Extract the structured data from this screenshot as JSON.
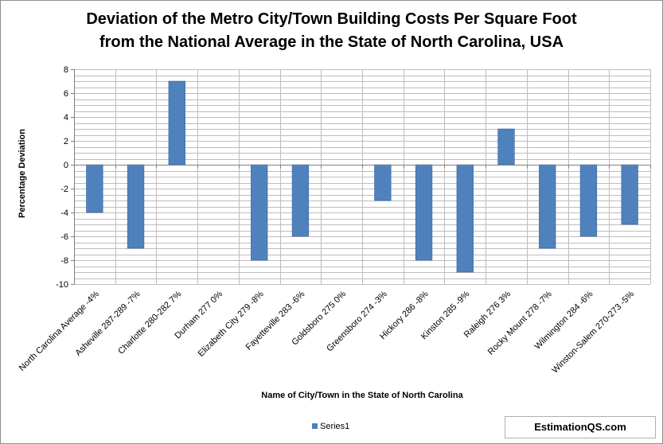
{
  "chart_data": {
    "type": "bar",
    "title": [
      "Deviation of the Metro City/Town Building Costs Per Square Foot",
      "from the National Average in the State of North Carolina, USA"
    ],
    "xlabel": "Name of City/Town in the State of North Carolina",
    "ylabel": "Percentage Deviation",
    "ylim": [
      -10,
      8
    ],
    "yticks": [
      8,
      6,
      4,
      2,
      0,
      -2,
      -4,
      -6,
      -8,
      -10
    ],
    "categories": [
      "North Carolina Average -4%",
      "Asheville 287-289 -7%",
      "Charlotte 280-282 7%",
      "Durham 277 0%",
      "Elizabeth City 279 -8%",
      "Fayetteville 283 -6%",
      "Goldsboro 275 0%",
      "Greensboro 274 -3%",
      "Hickory 286 -8%",
      "Kinston 285 -9%",
      "Raleigh 276 3%",
      "Rocky Mount 278 -7%",
      "Wilmington 284 -6%",
      "Winston-Salem 270-273 -5%"
    ],
    "series": [
      {
        "name": "Series1",
        "color": "#4f81bd",
        "values": [
          -4,
          -7,
          7,
          0,
          -8,
          -6,
          0,
          -3,
          -8,
          -9,
          3,
          -7,
          -6,
          -5
        ]
      }
    ],
    "grid": true,
    "legend_position": "bottom"
  },
  "watermark": "EstimationQS.com"
}
